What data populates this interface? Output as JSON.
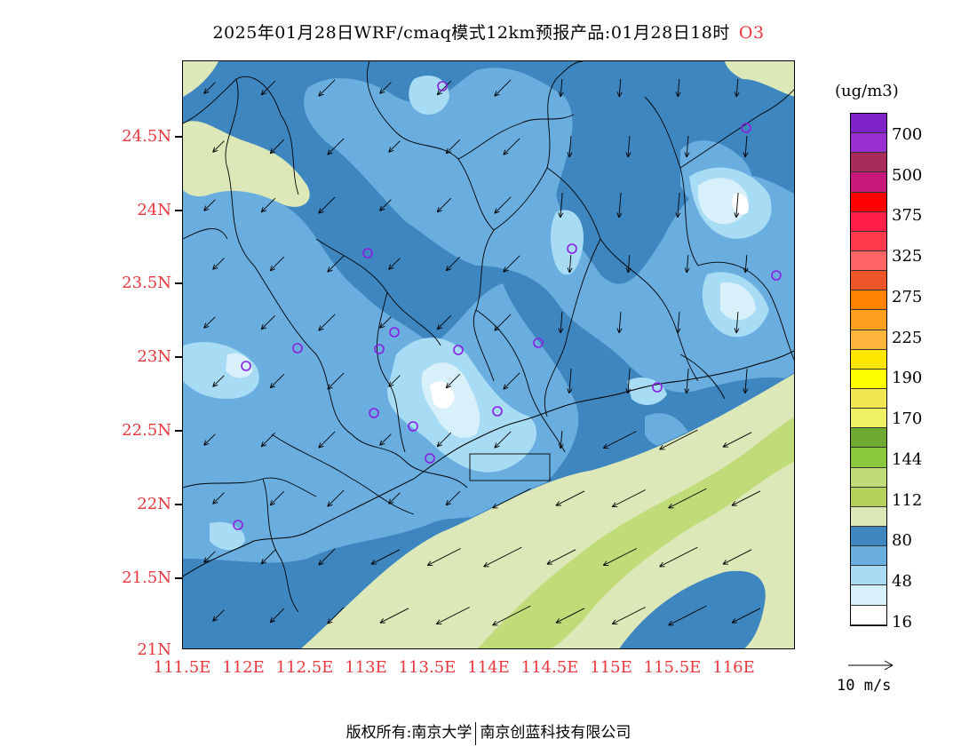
{
  "title": {
    "main": "2025年01月28日WRF/cmaq模式12km预报产品:01月28日18时",
    "pollutant": "O3"
  },
  "axes": {
    "lat_labels": [
      "24.5N",
      "24N",
      "23.5N",
      "23N",
      "22.5N",
      "22N",
      "21.5N",
      "21N"
    ],
    "lon_labels": [
      "111.5E",
      "112E",
      "112.5E",
      "113E",
      "113.5E",
      "114E",
      "114.5E",
      "115E",
      "115.5E",
      "116E"
    ]
  },
  "colorbar": {
    "unit": "(ug/m3)",
    "colors": [
      "#7c22c8",
      "#9a2fd0",
      "#a82c5a",
      "#c7177a",
      "#ff0000",
      "#ff1e46",
      "#ff3a4c",
      "#ff6464",
      "#ee5528",
      "#ff8200",
      "#ffa01e",
      "#ffb43c",
      "#ffe600",
      "#ffff00",
      "#f0e650",
      "#f0f064",
      "#6eaa32",
      "#8cc83c",
      "#c0dc78",
      "#b4d25a",
      "#dde8b8",
      "#3d86c0",
      "#6aaee0",
      "#a8dcf5",
      "#d8f0fa",
      "#ffffff"
    ],
    "labels": [
      "700",
      "500",
      "375",
      "325",
      "275",
      "225",
      "190",
      "170",
      "144",
      "112",
      "80",
      "48",
      "16"
    ]
  },
  "wind_reference": {
    "label": "10 m/s"
  },
  "map": {
    "stations_color": "#8a1ee0",
    "contour_colors": {
      "level_16": "#ffffff",
      "level_32": "#d8f0fa",
      "level_48": "#a8dcf5",
      "level_64": "#6aaee0",
      "level_80": "#3d86c0",
      "level_96": "#dde8b8",
      "level_112": "#c0dc78"
    }
  },
  "footer": {
    "copyright_left": "版权所有:南京大学",
    "copyright_right": "南京创蓝科技有限公司"
  }
}
